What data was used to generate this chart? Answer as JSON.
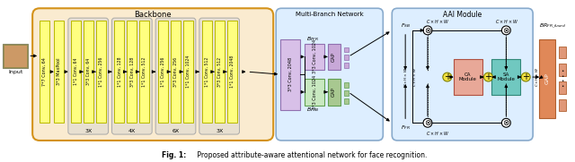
{
  "title": "Backbone",
  "multi_branch_title": "Multi-Branch Network",
  "aai_title": "AAI Module",
  "caption_bold": "Fig. 1:",
  "caption_rest": " Proposed attribute-aware attentional network for face recognition.",
  "bg_color": "#ffffff",
  "backbone_bg": "#faebd0",
  "backbone_border": "#d4921a",
  "group_bg": "#e8e0d0",
  "group_border": "#aaaaaa",
  "multi_branch_bg": "#ddeeff",
  "multi_branch_border": "#88aacc",
  "aai_bg": "#ddeeff",
  "aai_border": "#88aacc",
  "block_yellow": "#ffff80",
  "block_yellow_border": "#b8b800",
  "block_purple_bg": "#d8c0e8",
  "block_purple_border": "#9070b0",
  "block_green_bg": "#c8e8c0",
  "block_green_border": "#60a050",
  "gap_purple_bg": "#c8a8d8",
  "gap_purple_border": "#9070b0",
  "gap_green_bg": "#a8c890",
  "gap_green_border": "#60a050",
  "ca_module_bg": "#e8a898",
  "ca_module_border": "#b05040",
  "sa_module_bg": "#70c8c0",
  "sa_module_border": "#308878",
  "final_gap_bg": "#e08858",
  "final_gap_border": "#b06030",
  "final_dot_bg": "#e09878",
  "final_dot_border": "#b06030",
  "plus_circle_color": "#f0e040",
  "plus_circle_border": "#808000"
}
